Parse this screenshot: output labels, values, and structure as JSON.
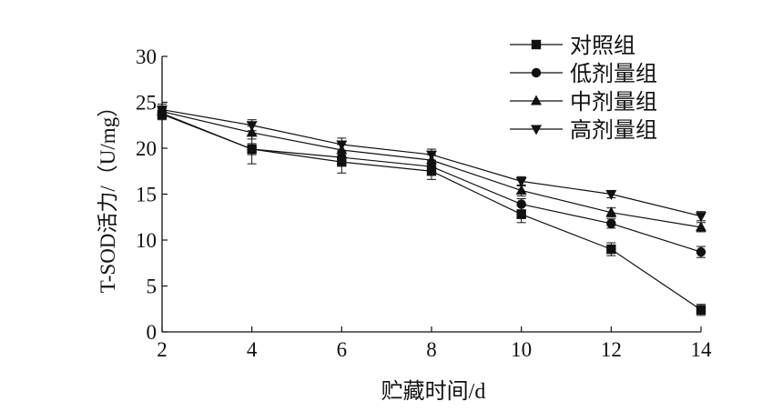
{
  "chart_data": {
    "type": "line",
    "title": "",
    "xlabel": "贮藏时间/d",
    "ylabel": "T-SOD活力/（U/mg）",
    "x": [
      2,
      4,
      6,
      8,
      10,
      12,
      14
    ],
    "xlim": [
      2,
      14
    ],
    "ylim": [
      0,
      30
    ],
    "xticks": [
      "2",
      "4",
      "6",
      "8",
      "10",
      "12",
      "14"
    ],
    "yticks": [
      "0",
      "5",
      "10",
      "15",
      "20",
      "25",
      "30"
    ],
    "grid": false,
    "legend_position": "top-right",
    "error_bars": true,
    "series": [
      {
        "name": "对照组",
        "marker": "square",
        "values": [
          23.7,
          19.9,
          18.5,
          17.5,
          12.8,
          9.0,
          2.4
        ],
        "errors": [
          0.6,
          1.6,
          1.2,
          0.9,
          0.9,
          0.7,
          0.6
        ]
      },
      {
        "name": "低剂量组",
        "marker": "circle",
        "values": [
          23.8,
          19.9,
          19.0,
          18.0,
          13.9,
          11.8,
          8.7
        ],
        "errors": [
          0.6,
          0.6,
          0.7,
          0.6,
          0.6,
          0.5,
          0.6
        ]
      },
      {
        "name": "中剂量组",
        "marker": "triangle-up",
        "values": [
          24.0,
          21.7,
          19.8,
          18.7,
          15.4,
          13.0,
          11.4
        ],
        "errors": [
          0.6,
          0.7,
          0.6,
          0.6,
          0.6,
          0.5,
          0.5
        ]
      },
      {
        "name": "高剂量组",
        "marker": "triangle-down",
        "values": [
          24.2,
          22.5,
          20.4,
          19.3,
          16.4,
          15.0,
          12.6
        ],
        "errors": [
          0.6,
          0.6,
          0.7,
          0.6,
          0.5,
          0.4,
          0.5
        ]
      }
    ]
  }
}
